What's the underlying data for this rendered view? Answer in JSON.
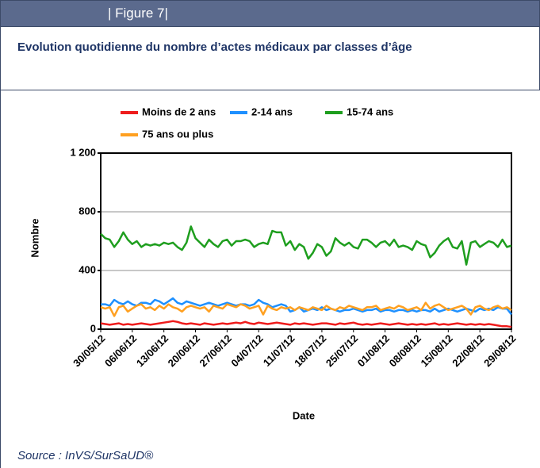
{
  "header": "| Figure 7|",
  "source": "Source : InVS/SurSaUD®",
  "chart_data": {
    "type": "line",
    "title": "Evolution quotidienne du nombre d’actes médicaux par classes d’âge",
    "x_label": "Date",
    "y_label": "Nombre",
    "x": [
      "30/05/12",
      "31/05/12",
      "01/06/12",
      "02/06/12",
      "03/06/12",
      "04/06/12",
      "05/06/12",
      "06/06/12",
      "07/06/12",
      "08/06/12",
      "09/06/12",
      "10/06/12",
      "11/06/12",
      "12/06/12",
      "13/06/12",
      "14/06/12",
      "15/06/12",
      "16/06/12",
      "17/06/12",
      "18/06/12",
      "19/06/12",
      "20/06/12",
      "21/06/12",
      "22/06/12",
      "23/06/12",
      "24/06/12",
      "25/06/12",
      "26/06/12",
      "27/06/12",
      "28/06/12",
      "29/06/12",
      "30/06/12",
      "01/07/12",
      "02/07/12",
      "03/07/12",
      "04/07/12",
      "05/07/12",
      "06/07/12",
      "07/07/12",
      "08/07/12",
      "09/07/12",
      "10/07/12",
      "11/07/12",
      "12/07/12",
      "13/07/12",
      "14/07/12",
      "15/07/12",
      "16/07/12",
      "17/07/12",
      "18/07/12",
      "19/07/12",
      "20/07/12",
      "21/07/12",
      "22/07/12",
      "23/07/12",
      "24/07/12",
      "25/07/12",
      "26/07/12",
      "27/07/12",
      "28/07/12",
      "29/07/12",
      "30/07/12",
      "31/07/12",
      "01/08/12",
      "02/08/12",
      "03/08/12",
      "04/08/12",
      "05/08/12",
      "06/08/12",
      "07/08/12",
      "08/08/12",
      "09/08/12",
      "10/08/12",
      "11/08/12",
      "12/08/12",
      "13/08/12",
      "14/08/12",
      "15/08/12",
      "16/08/12",
      "17/08/12",
      "18/08/12",
      "19/08/12",
      "20/08/12",
      "21/08/12",
      "22/08/12",
      "23/08/12",
      "24/08/12",
      "25/08/12",
      "26/08/12",
      "27/08/12",
      "28/08/12",
      "29/08/12"
    ],
    "xticks": [
      "30/05/12",
      "06/06/12",
      "13/06/12",
      "20/06/12",
      "27/06/12",
      "04/07/12",
      "11/07/12",
      "18/07/12",
      "25/07/12",
      "01/08/12",
      "08/08/12",
      "15/08/12",
      "22/08/12",
      "29/08/12"
    ],
    "ylim": [
      0,
      1200
    ],
    "yticks": [
      0,
      400,
      800,
      {
        "value": 1200,
        "label": "1 200"
      }
    ],
    "grid": true,
    "series": [
      {
        "name": "Moins de 2 ans",
        "color": "#ee1c1c",
        "values": [
          40,
          35,
          30,
          35,
          40,
          30,
          35,
          30,
          35,
          40,
          35,
          30,
          35,
          40,
          45,
          50,
          55,
          50,
          40,
          35,
          40,
          35,
          30,
          40,
          35,
          30,
          35,
          40,
          35,
          40,
          45,
          40,
          50,
          40,
          35,
          45,
          40,
          35,
          40,
          45,
          40,
          35,
          30,
          40,
          35,
          40,
          35,
          30,
          35,
          40,
          40,
          35,
          30,
          40,
          35,
          40,
          45,
          35,
          30,
          35,
          30,
          35,
          40,
          35,
          30,
          35,
          40,
          35,
          30,
          35,
          30,
          35,
          30,
          35,
          40,
          30,
          35,
          30,
          35,
          40,
          35,
          30,
          35,
          30,
          35,
          30,
          35,
          30,
          25,
          20,
          20,
          15
        ]
      },
      {
        "name": "2-14 ans",
        "color": "#1e90ff",
        "values": [
          170,
          170,
          160,
          200,
          180,
          170,
          190,
          170,
          160,
          180,
          180,
          170,
          200,
          190,
          170,
          190,
          210,
          180,
          170,
          190,
          180,
          170,
          160,
          170,
          180,
          170,
          160,
          170,
          180,
          170,
          160,
          170,
          170,
          160,
          170,
          200,
          180,
          170,
          150,
          160,
          170,
          160,
          120,
          130,
          150,
          120,
          130,
          140,
          130,
          150,
          130,
          140,
          130,
          120,
          130,
          130,
          140,
          130,
          120,
          130,
          130,
          140,
          120,
          130,
          130,
          120,
          130,
          130,
          120,
          130,
          120,
          130,
          130,
          120,
          140,
          120,
          130,
          140,
          130,
          120,
          130,
          140,
          130,
          120,
          140,
          130,
          140,
          130,
          150,
          140,
          140,
          100
        ]
      },
      {
        "name": "15-74 ans",
        "color": "#1e9e1e",
        "values": [
          650,
          620,
          610,
          560,
          600,
          660,
          610,
          580,
          600,
          560,
          580,
          570,
          580,
          570,
          590,
          580,
          590,
          560,
          540,
          590,
          700,
          620,
          590,
          560,
          610,
          580,
          560,
          600,
          610,
          570,
          600,
          600,
          610,
          600,
          560,
          580,
          590,
          580,
          670,
          660,
          660,
          570,
          600,
          540,
          580,
          560,
          480,
          520,
          580,
          560,
          500,
          530,
          620,
          590,
          570,
          590,
          560,
          550,
          610,
          610,
          590,
          560,
          590,
          600,
          570,
          610,
          560,
          570,
          560,
          540,
          600,
          580,
          570,
          490,
          520,
          570,
          600,
          620,
          560,
          550,
          600,
          440,
          590,
          600,
          560,
          580,
          600,
          590,
          560,
          610,
          560,
          570
        ]
      },
      {
        "name": "75 ans ou plus",
        "color": "#ffa020",
        "values": [
          150,
          140,
          150,
          90,
          150,
          160,
          120,
          140,
          160,
          170,
          140,
          150,
          130,
          160,
          140,
          170,
          150,
          140,
          120,
          150,
          160,
          150,
          140,
          150,
          120,
          160,
          150,
          140,
          170,
          160,
          150,
          170,
          160,
          140,
          150,
          160,
          100,
          160,
          140,
          130,
          150,
          140,
          150,
          130,
          150,
          140,
          130,
          150,
          140,
          130,
          160,
          140,
          130,
          150,
          140,
          160,
          150,
          140,
          130,
          150,
          150,
          160,
          130,
          140,
          150,
          140,
          160,
          150,
          130,
          140,
          150,
          130,
          180,
          140,
          160,
          170,
          150,
          130,
          140,
          150,
          160,
          140,
          100,
          150,
          160,
          140,
          130,
          150,
          160,
          140,
          150,
          130
        ]
      }
    ]
  }
}
